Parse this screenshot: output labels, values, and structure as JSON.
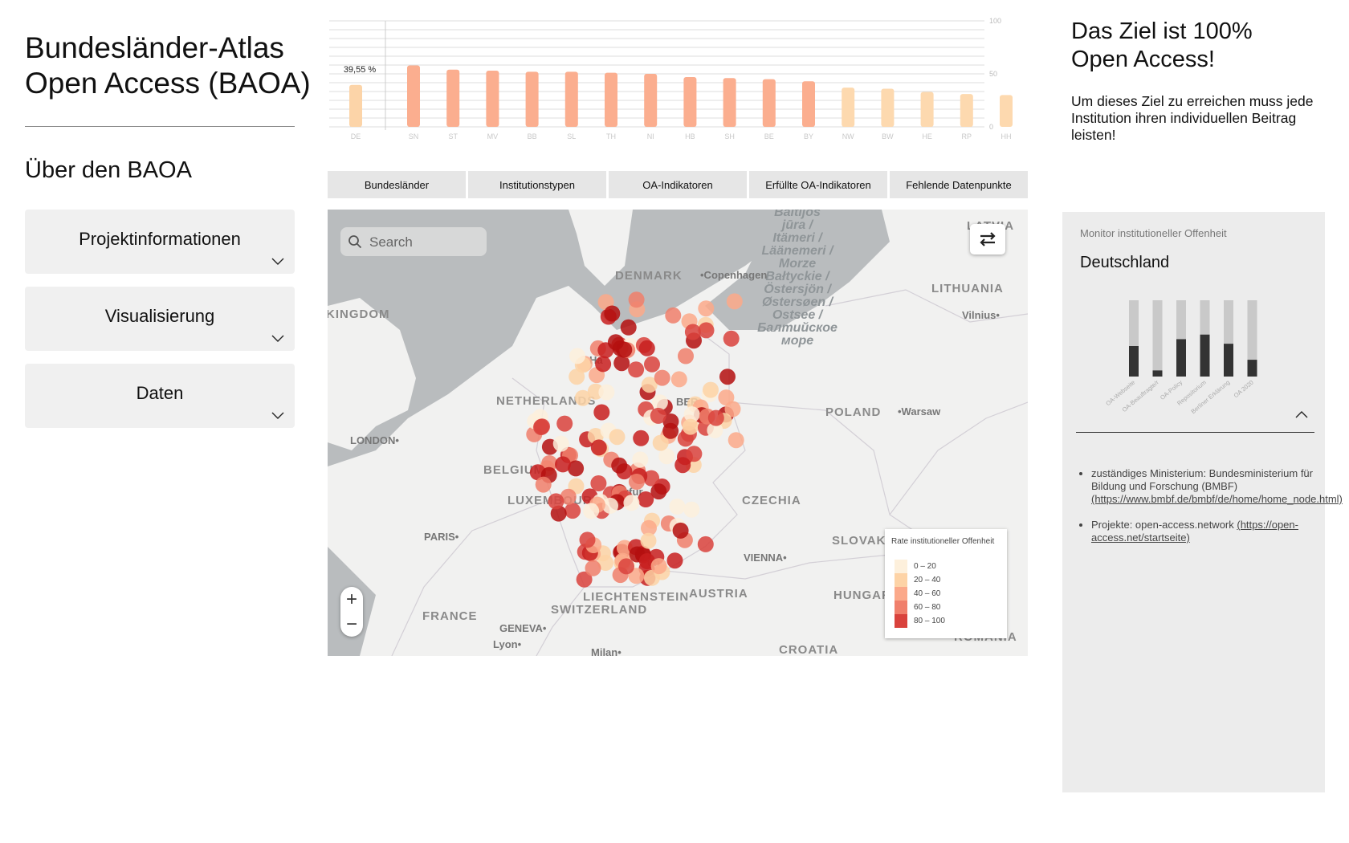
{
  "app": {
    "title_line1": "Bundesländer-Atlas",
    "title_line2": "Open Access (BAOA)",
    "about_heading": "Über den BAOA"
  },
  "sidebar": {
    "items": [
      {
        "label": "Projektinformationen"
      },
      {
        "label": "Visualisierung"
      },
      {
        "label": "Daten"
      }
    ]
  },
  "tabs": [
    {
      "label": "Bundesländer"
    },
    {
      "label": "Institutionstypen"
    },
    {
      "label": "OA-Indikatoren"
    },
    {
      "label": "Erfüllte OA-Indikatoren"
    },
    {
      "label": "Fehlende Datenpunkte"
    }
  ],
  "chart_data": {
    "type": "bar",
    "categories": [
      "DE",
      "SN",
      "ST",
      "MV",
      "BB",
      "SL",
      "TH",
      "NI",
      "HB",
      "SH",
      "BE",
      "BY",
      "NW",
      "BW",
      "HE",
      "RP",
      "HH"
    ],
    "values": [
      39.55,
      58,
      54,
      53,
      52,
      52,
      51,
      50,
      47,
      46,
      45,
      43,
      37,
      36,
      33,
      31,
      30
    ],
    "highlight_label": "39,55 %",
    "yticks": [
      0,
      50,
      100
    ],
    "ylim": [
      0,
      100
    ],
    "colors": {
      "high": "#fbae8f",
      "low": "#fdd9af",
      "de": "#fcd4a8"
    },
    "grid": true
  },
  "map": {
    "search_placeholder": "Search",
    "labels": [
      {
        "text": "DENMARK"
      },
      {
        "text": "LITHUANIA"
      },
      {
        "text": "KINGDOM"
      },
      {
        "text": "NETHERLANDS"
      },
      {
        "text": "POLAND"
      },
      {
        "text": "BELGIUM"
      },
      {
        "text": "LUXEMBOURG"
      },
      {
        "text": "CZECHIA"
      },
      {
        "text": "SLOVAKIA"
      },
      {
        "text": "AUSTRIA"
      },
      {
        "text": "LIECHTENSTEIN"
      },
      {
        "text": "SWITZERLAND"
      },
      {
        "text": "FRANCE"
      },
      {
        "text": "HUNGARY"
      },
      {
        "text": "CROATIA"
      },
      {
        "text": "LATVIA"
      },
      {
        "text": "ROMANIA"
      }
    ],
    "cities": [
      {
        "text": "•Copenhagen"
      },
      {
        "text": "Vilnius•"
      },
      {
        "text": "LONDON•"
      },
      {
        "text": "•Warsaw"
      },
      {
        "text": "PARIS•"
      },
      {
        "text": "VIENNA•"
      },
      {
        "text": "GENEVA•"
      },
      {
        "text": "Lyon•"
      },
      {
        "text": "Milan•"
      },
      {
        "text": "Ha"
      },
      {
        "text": "BER"
      },
      {
        "text": "nkfur"
      },
      {
        "text": "un"
      }
    ],
    "sea_text": "Baltijos\njūra /\nItämeri /\nLäänemeri /\nMorze\nBałtyckie /\nÖstersjön /\nØstersøen /\nOstsee /\nБалтийское\nморе",
    "legend": {
      "title": "Rate institutioneller Offenheit",
      "items": [
        {
          "label": "0 – 20",
          "color": "#fdf0dc"
        },
        {
          "label": "20 – 40",
          "color": "#fdd3a6"
        },
        {
          "label": "40 – 60",
          "color": "#fba98a"
        },
        {
          "label": "60 – 80",
          "color": "#f07f6b"
        },
        {
          "label": "80 – 100",
          "color": "#d9423c"
        }
      ]
    }
  },
  "goal": {
    "title_line1": "Das Ziel ist 100%",
    "title_line2": "Open Access!",
    "text": "Um dieses Ziel zu erreichen muss jede Institution ihren individuellen Beitrag leisten!"
  },
  "panel": {
    "kicker": "Monitor institutioneller Offenheit",
    "title": "Deutschland",
    "indicators": {
      "type": "bar",
      "categories": [
        "OA-Webseite",
        "OA-Beauftragte/r",
        "OA-Policy",
        "Repositorium",
        "Berliner Erklärung",
        "OA 2020"
      ],
      "values": [
        40,
        8,
        49,
        55,
        43,
        22
      ],
      "ylim": [
        0,
        100
      ],
      "colors": {
        "filled": "#333333",
        "track": "#c9c9c9"
      }
    },
    "info": [
      {
        "text": "zuständiges Ministerium: Bundesministerium für Bildung und Forschung (BMBF) ",
        "link": "(https://www.bmbf.de/bmbf/de/home/home_node.html)"
      },
      {
        "text": "Projekte: open-access.network ",
        "link": "(https://open-access.net/startseite)"
      }
    ]
  }
}
